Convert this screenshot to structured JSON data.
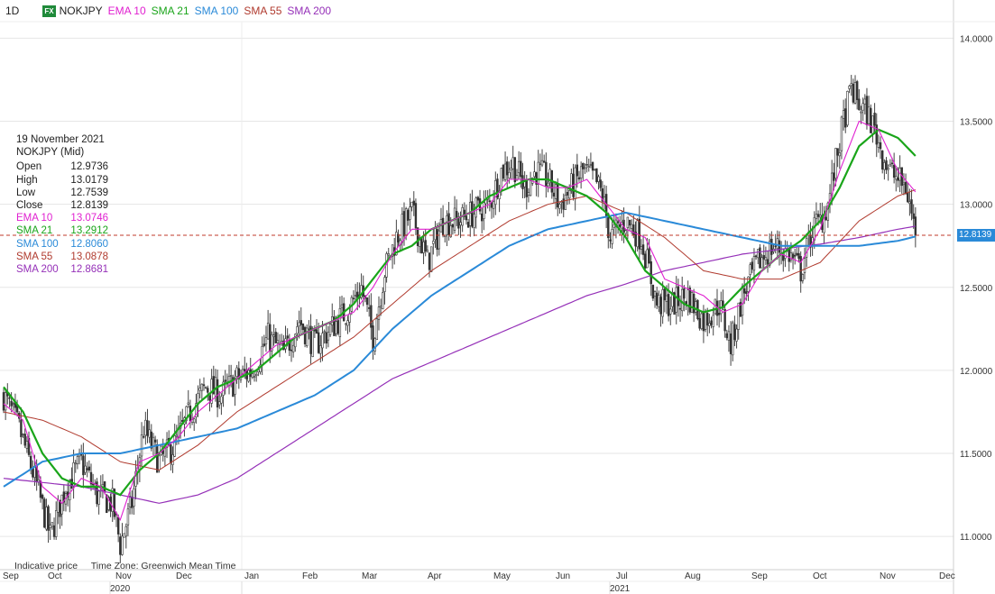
{
  "header": {
    "timeframe": "1D",
    "badge": "FX",
    "symbol": "NOKJPY",
    "indicators": [
      {
        "label": "EMA 10",
        "color": "#e020d0"
      },
      {
        "label": "SMA 21",
        "color": "#1aa51a"
      },
      {
        "label": "SMA 100",
        "color": "#2a8ad8"
      },
      {
        "label": "SMA 55",
        "color": "#b03a2e"
      },
      {
        "label": "SMA 200",
        "color": "#9530b8"
      }
    ]
  },
  "ohlc_panel": {
    "date": "19 November 2021",
    "instrument": "NOKJPY (Mid)",
    "rows": [
      {
        "k": "Open",
        "v": "12.9736",
        "color": "#222222"
      },
      {
        "k": "High",
        "v": "13.0179",
        "color": "#222222"
      },
      {
        "k": "Low",
        "v": "12.7539",
        "color": "#222222"
      },
      {
        "k": "Close",
        "v": "12.8139",
        "color": "#222222"
      },
      {
        "k": "EMA 10",
        "v": "13.0746",
        "color": "#e020d0"
      },
      {
        "k": "SMA 21",
        "v": "13.2912",
        "color": "#1aa51a"
      },
      {
        "k": "SMA 100",
        "v": "12.8060",
        "color": "#2a8ad8"
      },
      {
        "k": "SMA 55",
        "v": "13.0878",
        "color": "#b03a2e"
      },
      {
        "k": "SMA 200",
        "v": "12.8681",
        "color": "#9530b8"
      }
    ]
  },
  "footer": {
    "note1": "Indicative price",
    "note2": "Time Zone: Greenwich Mean Time"
  },
  "last_price_tag": "12.8139",
  "chart_data": {
    "type": "candlestick",
    "ylim": [
      10.8,
      14.1
    ],
    "yticks": [
      "14.0000",
      "13.5000",
      "13.0000",
      "12.5000",
      "12.0000",
      "11.5000",
      "11.0000"
    ],
    "ytick_values": [
      14.0,
      13.5,
      13.0,
      12.5,
      12.0,
      11.5,
      11.0
    ],
    "months": [
      "Sep",
      "Oct",
      "Nov",
      "Dec",
      "Jan",
      "Feb",
      "Mar",
      "Apr",
      "May",
      "Jun",
      "Jul",
      "Aug",
      "Sep",
      "Oct",
      "Nov",
      "Dec"
    ],
    "years": [
      "2020",
      "2021"
    ],
    "last_close": 12.8139,
    "close_path": [
      [
        0,
        11.85
      ],
      [
        8,
        11.65
      ],
      [
        16,
        11.35
      ],
      [
        24,
        11.0
      ],
      [
        32,
        11.3
      ],
      [
        40,
        11.45
      ],
      [
        48,
        11.25
      ],
      [
        56,
        11.2
      ],
      [
        60,
        10.95
      ],
      [
        66,
        11.2
      ],
      [
        72,
        11.65
      ],
      [
        80,
        11.45
      ],
      [
        88,
        11.55
      ],
      [
        96,
        11.75
      ],
      [
        104,
        11.9
      ],
      [
        112,
        11.85
      ],
      [
        120,
        11.95
      ],
      [
        128,
        12.0
      ],
      [
        136,
        12.2
      ],
      [
        144,
        12.1
      ],
      [
        152,
        12.3
      ],
      [
        160,
        12.15
      ],
      [
        168,
        12.25
      ],
      [
        176,
        12.35
      ],
      [
        184,
        12.5
      ],
      [
        190,
        12.2
      ],
      [
        196,
        12.6
      ],
      [
        202,
        12.8
      ],
      [
        210,
        12.95
      ],
      [
        218,
        12.65
      ],
      [
        226,
        12.9
      ],
      [
        234,
        12.9
      ],
      [
        242,
        12.95
      ],
      [
        250,
        13.0
      ],
      [
        256,
        13.2
      ],
      [
        262,
        13.25
      ],
      [
        268,
        13.1
      ],
      [
        274,
        13.2
      ],
      [
        280,
        13.15
      ],
      [
        286,
        13.0
      ],
      [
        292,
        13.1
      ],
      [
        298,
        13.2
      ],
      [
        304,
        13.15
      ],
      [
        308,
        13.05
      ],
      [
        312,
        12.8
      ],
      [
        320,
        12.9
      ],
      [
        328,
        12.8
      ],
      [
        336,
        12.4
      ],
      [
        344,
        12.4
      ],
      [
        352,
        12.45
      ],
      [
        360,
        12.3
      ],
      [
        368,
        12.4
      ],
      [
        374,
        12.15
      ],
      [
        380,
        12.45
      ],
      [
        388,
        12.65
      ],
      [
        396,
        12.75
      ],
      [
        404,
        12.7
      ],
      [
        410,
        12.6
      ],
      [
        416,
        12.85
      ],
      [
        420,
        12.9
      ],
      [
        424,
        13.0
      ],
      [
        428,
        13.25
      ],
      [
        432,
        13.5
      ],
      [
        436,
        13.7
      ],
      [
        440,
        13.6
      ],
      [
        444,
        13.55
      ],
      [
        448,
        13.45
      ],
      [
        452,
        13.3
      ],
      [
        456,
        13.2
      ],
      [
        460,
        13.15
      ],
      [
        464,
        13.1
      ],
      [
        467,
        12.95
      ],
      [
        469,
        12.8139
      ]
    ],
    "ema10_path": [
      [
        0,
        11.8
      ],
      [
        10,
        11.7
      ],
      [
        20,
        11.3
      ],
      [
        30,
        11.2
      ],
      [
        40,
        11.35
      ],
      [
        50,
        11.3
      ],
      [
        60,
        11.1
      ],
      [
        70,
        11.45
      ],
      [
        80,
        11.5
      ],
      [
        90,
        11.6
      ],
      [
        100,
        11.75
      ],
      [
        110,
        11.85
      ],
      [
        120,
        11.95
      ],
      [
        130,
        12.05
      ],
      [
        140,
        12.15
      ],
      [
        150,
        12.2
      ],
      [
        160,
        12.25
      ],
      [
        170,
        12.3
      ],
      [
        180,
        12.35
      ],
      [
        190,
        12.5
      ],
      [
        200,
        12.7
      ],
      [
        210,
        12.85
      ],
      [
        220,
        12.85
      ],
      [
        230,
        12.9
      ],
      [
        240,
        12.95
      ],
      [
        250,
        13.0
      ],
      [
        260,
        13.15
      ],
      [
        270,
        13.15
      ],
      [
        280,
        13.1
      ],
      [
        290,
        13.1
      ],
      [
        300,
        13.15
      ],
      [
        310,
        13.0
      ],
      [
        320,
        12.85
      ],
      [
        330,
        12.8
      ],
      [
        340,
        12.55
      ],
      [
        350,
        12.5
      ],
      [
        360,
        12.45
      ],
      [
        370,
        12.35
      ],
      [
        380,
        12.4
      ],
      [
        390,
        12.6
      ],
      [
        400,
        12.7
      ],
      [
        410,
        12.65
      ],
      [
        420,
        12.85
      ],
      [
        430,
        13.2
      ],
      [
        440,
        13.5
      ],
      [
        450,
        13.45
      ],
      [
        460,
        13.2
      ],
      [
        469,
        13.0746
      ]
    ],
    "sma21_path": [
      [
        0,
        11.9
      ],
      [
        10,
        11.75
      ],
      [
        20,
        11.5
      ],
      [
        30,
        11.35
      ],
      [
        40,
        11.3
      ],
      [
        50,
        11.3
      ],
      [
        60,
        11.25
      ],
      [
        70,
        11.4
      ],
      [
        80,
        11.5
      ],
      [
        90,
        11.65
      ],
      [
        100,
        11.8
      ],
      [
        110,
        11.9
      ],
      [
        120,
        11.95
      ],
      [
        130,
        12.0
      ],
      [
        140,
        12.1
      ],
      [
        150,
        12.2
      ],
      [
        160,
        12.25
      ],
      [
        170,
        12.3
      ],
      [
        180,
        12.4
      ],
      [
        190,
        12.55
      ],
      [
        200,
        12.7
      ],
      [
        210,
        12.75
      ],
      [
        220,
        12.85
      ],
      [
        230,
        12.9
      ],
      [
        240,
        12.95
      ],
      [
        250,
        13.05
      ],
      [
        260,
        13.1
      ],
      [
        270,
        13.15
      ],
      [
        280,
        13.15
      ],
      [
        290,
        13.1
      ],
      [
        300,
        13.05
      ],
      [
        310,
        12.95
      ],
      [
        320,
        12.8
      ],
      [
        330,
        12.6
      ],
      [
        340,
        12.5
      ],
      [
        350,
        12.4
      ],
      [
        360,
        12.35
      ],
      [
        370,
        12.38
      ],
      [
        380,
        12.5
      ],
      [
        390,
        12.6
      ],
      [
        400,
        12.7
      ],
      [
        410,
        12.78
      ],
      [
        420,
        12.9
      ],
      [
        430,
        13.1
      ],
      [
        440,
        13.35
      ],
      [
        450,
        13.45
      ],
      [
        460,
        13.4
      ],
      [
        469,
        13.2912
      ]
    ],
    "sma55_path": [
      [
        0,
        11.75
      ],
      [
        20,
        11.7
      ],
      [
        40,
        11.6
      ],
      [
        60,
        11.45
      ],
      [
        80,
        11.4
      ],
      [
        100,
        11.55
      ],
      [
        120,
        11.75
      ],
      [
        140,
        11.9
      ],
      [
        160,
        12.05
      ],
      [
        180,
        12.2
      ],
      [
        200,
        12.4
      ],
      [
        220,
        12.6
      ],
      [
        240,
        12.75
      ],
      [
        260,
        12.9
      ],
      [
        280,
        13.0
      ],
      [
        300,
        13.05
      ],
      [
        320,
        12.95
      ],
      [
        340,
        12.8
      ],
      [
        360,
        12.6
      ],
      [
        380,
        12.55
      ],
      [
        400,
        12.55
      ],
      [
        420,
        12.65
      ],
      [
        440,
        12.9
      ],
      [
        460,
        13.05
      ],
      [
        469,
        13.0878
      ]
    ],
    "sma100_path": [
      [
        0,
        11.3
      ],
      [
        20,
        11.45
      ],
      [
        40,
        11.5
      ],
      [
        60,
        11.5
      ],
      [
        80,
        11.55
      ],
      [
        100,
        11.6
      ],
      [
        120,
        11.65
      ],
      [
        140,
        11.75
      ],
      [
        160,
        11.85
      ],
      [
        180,
        12.0
      ],
      [
        200,
        12.25
      ],
      [
        220,
        12.45
      ],
      [
        240,
        12.6
      ],
      [
        260,
        12.75
      ],
      [
        280,
        12.85
      ],
      [
        300,
        12.9
      ],
      [
        320,
        12.95
      ],
      [
        340,
        12.9
      ],
      [
        360,
        12.85
      ],
      [
        380,
        12.8
      ],
      [
        400,
        12.75
      ],
      [
        420,
        12.75
      ],
      [
        440,
        12.75
      ],
      [
        460,
        12.78
      ],
      [
        469,
        12.806
      ]
    ],
    "sma200_path": [
      [
        0,
        11.35
      ],
      [
        40,
        11.3
      ],
      [
        80,
        11.2
      ],
      [
        100,
        11.25
      ],
      [
        120,
        11.35
      ],
      [
        140,
        11.5
      ],
      [
        160,
        11.65
      ],
      [
        180,
        11.8
      ],
      [
        200,
        11.95
      ],
      [
        220,
        12.05
      ],
      [
        240,
        12.15
      ],
      [
        260,
        12.25
      ],
      [
        280,
        12.35
      ],
      [
        300,
        12.45
      ],
      [
        320,
        12.52
      ],
      [
        340,
        12.6
      ],
      [
        360,
        12.65
      ],
      [
        380,
        12.7
      ],
      [
        400,
        12.73
      ],
      [
        420,
        12.76
      ],
      [
        440,
        12.8
      ],
      [
        460,
        12.85
      ],
      [
        469,
        12.8681
      ]
    ]
  }
}
